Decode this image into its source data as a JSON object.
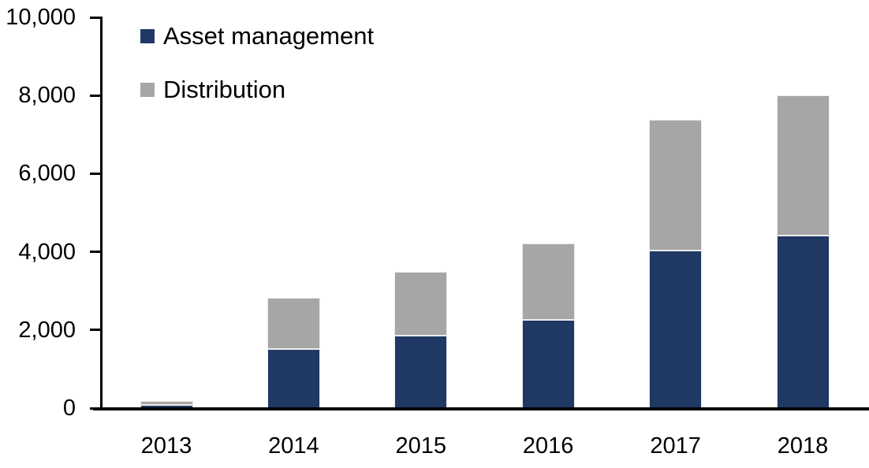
{
  "chart_data": {
    "type": "bar",
    "stacked": true,
    "title": "",
    "categories": [
      "2013",
      "2014",
      "2015",
      "2016",
      "2017",
      "2018"
    ],
    "series": [
      {
        "name": "Asset management",
        "color": "#1f3864",
        "values": [
          90,
          1510,
          1860,
          2260,
          4030,
          4420
        ]
      },
      {
        "name": "Distribution",
        "color": "#a6a6a6",
        "values": [
          100,
          1310,
          1630,
          1950,
          3350,
          3580
        ]
      }
    ],
    "totals": [
      190,
      2820,
      3490,
      4210,
      7380,
      8000
    ],
    "xlabel": "",
    "ylabel": "",
    "ylim": [
      0,
      10000
    ],
    "y_tick_step": 2000,
    "y_ticks": [
      0,
      2000,
      4000,
      6000,
      8000,
      10000
    ],
    "y_tick_labels": [
      "0",
      "2,000",
      "4,000",
      "6,000",
      "8,000",
      "10,000"
    ],
    "grid": false,
    "legend_position": "top-left-inside",
    "axis_color": "#000000",
    "background_color": "#ffffff"
  }
}
